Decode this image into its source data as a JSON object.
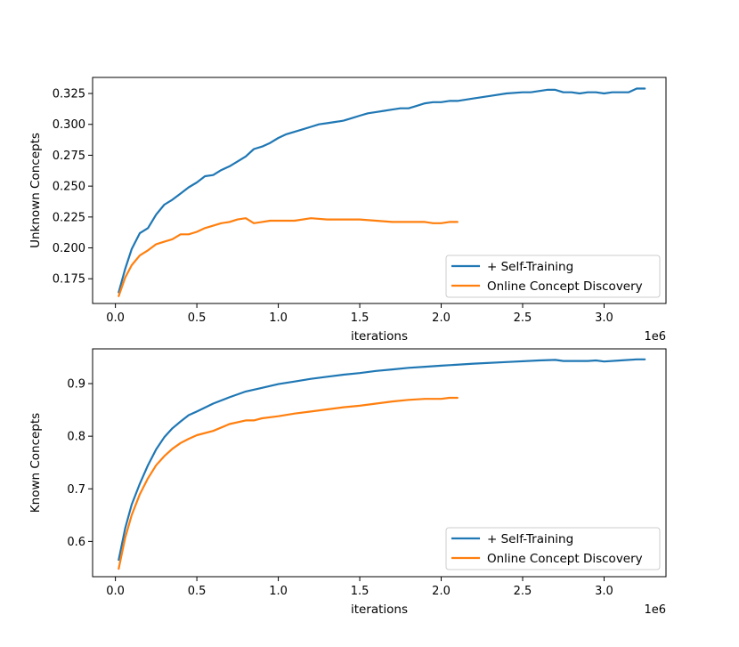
{
  "colors": {
    "self_training": "#1f77b4",
    "online": "#ff7f0e"
  },
  "chart_data": [
    {
      "type": "line",
      "title": "",
      "xlabel": "iterations",
      "ylabel": "Unknown Concepts",
      "x_offset_text": "1e6",
      "xlim": [
        -0.14,
        3.38
      ],
      "ylim": [
        0.155,
        0.338
      ],
      "xticks": [
        0.0,
        0.5,
        1.0,
        1.5,
        2.0,
        2.5,
        3.0
      ],
      "xtick_labels": [
        "0.0",
        "0.5",
        "1.0",
        "1.5",
        "2.0",
        "2.5",
        "3.0"
      ],
      "yticks": [
        0.175,
        0.2,
        0.225,
        0.25,
        0.275,
        0.3,
        0.325
      ],
      "ytick_labels": [
        "0.175",
        "0.200",
        "0.225",
        "0.250",
        "0.275",
        "0.300",
        "0.325"
      ],
      "legend_position": "lower-right",
      "series": [
        {
          "name": "+ Self-Training",
          "color": "#1f77b4",
          "x": [
            0.02,
            0.06,
            0.1,
            0.15,
            0.2,
            0.25,
            0.3,
            0.35,
            0.4,
            0.45,
            0.5,
            0.55,
            0.6,
            0.65,
            0.7,
            0.75,
            0.8,
            0.85,
            0.9,
            0.95,
            1.0,
            1.05,
            1.1,
            1.15,
            1.2,
            1.25,
            1.3,
            1.35,
            1.4,
            1.45,
            1.5,
            1.55,
            1.6,
            1.65,
            1.7,
            1.75,
            1.8,
            1.85,
            1.9,
            1.95,
            2.0,
            2.05,
            2.1,
            2.2,
            2.3,
            2.4,
            2.5,
            2.55,
            2.6,
            2.65,
            2.7,
            2.75,
            2.8,
            2.85,
            2.9,
            2.95,
            3.0,
            3.05,
            3.1,
            3.15,
            3.2,
            3.25
          ],
          "values": [
            0.164,
            0.183,
            0.199,
            0.212,
            0.216,
            0.227,
            0.235,
            0.239,
            0.244,
            0.249,
            0.253,
            0.258,
            0.259,
            0.263,
            0.266,
            0.27,
            0.274,
            0.28,
            0.282,
            0.285,
            0.289,
            0.292,
            0.294,
            0.296,
            0.298,
            0.3,
            0.301,
            0.302,
            0.303,
            0.305,
            0.307,
            0.309,
            0.31,
            0.311,
            0.312,
            0.313,
            0.313,
            0.315,
            0.317,
            0.318,
            0.318,
            0.319,
            0.319,
            0.321,
            0.323,
            0.325,
            0.326,
            0.326,
            0.327,
            0.328,
            0.328,
            0.326,
            0.326,
            0.325,
            0.326,
            0.326,
            0.325,
            0.326,
            0.326,
            0.326,
            0.329,
            0.329
          ]
        },
        {
          "name": "Online Concept Discovery",
          "color": "#ff7f0e",
          "x": [
            0.02,
            0.06,
            0.1,
            0.15,
            0.2,
            0.25,
            0.3,
            0.35,
            0.4,
            0.45,
            0.5,
            0.55,
            0.6,
            0.65,
            0.7,
            0.75,
            0.8,
            0.85,
            0.9,
            0.95,
            1.0,
            1.1,
            1.2,
            1.3,
            1.4,
            1.5,
            1.6,
            1.7,
            1.8,
            1.9,
            1.95,
            2.0,
            2.05,
            2.1
          ],
          "values": [
            0.161,
            0.176,
            0.186,
            0.194,
            0.198,
            0.203,
            0.205,
            0.207,
            0.211,
            0.211,
            0.213,
            0.216,
            0.218,
            0.22,
            0.221,
            0.223,
            0.224,
            0.22,
            0.221,
            0.222,
            0.222,
            0.222,
            0.224,
            0.223,
            0.223,
            0.223,
            0.222,
            0.221,
            0.221,
            0.221,
            0.22,
            0.22,
            0.221,
            0.221
          ]
        }
      ]
    },
    {
      "type": "line",
      "title": "",
      "xlabel": "iterations",
      "ylabel": "Known Concepts",
      "x_offset_text": "1e6",
      "xlim": [
        -0.14,
        3.38
      ],
      "ylim": [
        0.533,
        0.966
      ],
      "xticks": [
        0.0,
        0.5,
        1.0,
        1.5,
        2.0,
        2.5,
        3.0
      ],
      "xtick_labels": [
        "0.0",
        "0.5",
        "1.0",
        "1.5",
        "2.0",
        "2.5",
        "3.0"
      ],
      "yticks": [
        0.6,
        0.7,
        0.8,
        0.9
      ],
      "ytick_labels": [
        "0.6",
        "0.7",
        "0.8",
        "0.9"
      ],
      "legend_position": "lower-right",
      "series": [
        {
          "name": "+ Self-Training",
          "color": "#1f77b4",
          "x": [
            0.02,
            0.06,
            0.1,
            0.15,
            0.2,
            0.25,
            0.3,
            0.35,
            0.4,
            0.45,
            0.5,
            0.6,
            0.7,
            0.8,
            0.9,
            1.0,
            1.1,
            1.2,
            1.3,
            1.4,
            1.5,
            1.6,
            1.7,
            1.8,
            1.9,
            2.0,
            2.2,
            2.4,
            2.6,
            2.7,
            2.75,
            2.8,
            2.9,
            2.95,
            3.0,
            3.1,
            3.2,
            3.25
          ],
          "values": [
            0.565,
            0.625,
            0.67,
            0.71,
            0.745,
            0.775,
            0.798,
            0.815,
            0.828,
            0.84,
            0.847,
            0.862,
            0.874,
            0.885,
            0.892,
            0.899,
            0.904,
            0.909,
            0.913,
            0.917,
            0.92,
            0.924,
            0.927,
            0.93,
            0.932,
            0.934,
            0.938,
            0.941,
            0.944,
            0.945,
            0.943,
            0.943,
            0.943,
            0.944,
            0.942,
            0.944,
            0.946,
            0.946
          ]
        },
        {
          "name": "Online Concept Discovery",
          "color": "#ff7f0e",
          "x": [
            0.02,
            0.06,
            0.1,
            0.15,
            0.2,
            0.25,
            0.3,
            0.35,
            0.4,
            0.45,
            0.5,
            0.6,
            0.7,
            0.8,
            0.85,
            0.9,
            1.0,
            1.1,
            1.2,
            1.3,
            1.4,
            1.5,
            1.6,
            1.7,
            1.8,
            1.9,
            1.95,
            2.0,
            2.05,
            2.1
          ],
          "values": [
            0.548,
            0.607,
            0.65,
            0.69,
            0.72,
            0.745,
            0.762,
            0.776,
            0.787,
            0.795,
            0.802,
            0.81,
            0.823,
            0.83,
            0.83,
            0.834,
            0.838,
            0.843,
            0.847,
            0.851,
            0.855,
            0.858,
            0.862,
            0.866,
            0.869,
            0.871,
            0.871,
            0.871,
            0.873,
            0.873
          ]
        }
      ]
    }
  ]
}
